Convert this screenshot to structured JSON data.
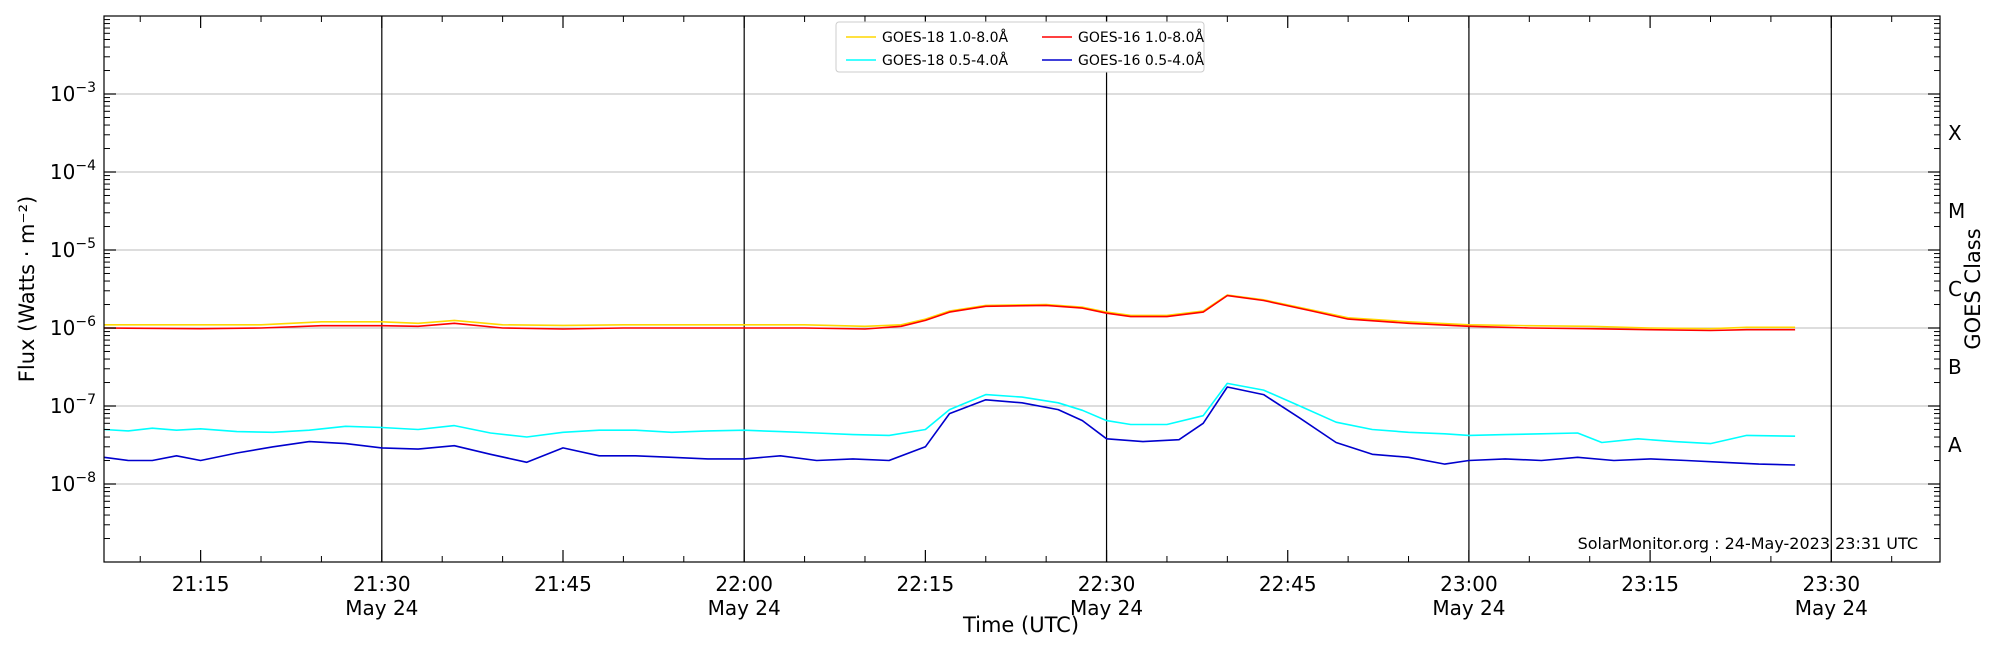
{
  "chart_data": {
    "type": "line",
    "title": "",
    "xlabel": "Time (UTC)",
    "ylabel": "Flux (Watts · m⁻²)",
    "right_ylabel": "GOES Class",
    "yscale": "log",
    "ylim": [
      1e-09,
      0.01
    ],
    "xlim": [
      "21:07",
      "23:39"
    ],
    "date": "May 24",
    "x_ticks": [
      "21:15",
      "21:30",
      "21:45",
      "22:00",
      "22:15",
      "22:30",
      "22:45",
      "23:00",
      "23:15",
      "23:30"
    ],
    "x_tick_dates": [
      "",
      "May 24",
      "",
      "May 24",
      "",
      "May 24",
      "",
      "May 24",
      "",
      "May 24"
    ],
    "y_tick_exponents": [
      -8,
      -7,
      -6,
      -5,
      -4,
      -3
    ],
    "goes_classes": [
      "A",
      "B",
      "C",
      "M",
      "X"
    ],
    "vertical_lines": [
      "21:30",
      "22:00",
      "22:30",
      "23:00",
      "23:30"
    ],
    "grid": "horizontal",
    "legend_position": "top-center",
    "credit": "SolarMonitor.org : 24-May-2023 23:31 UTC",
    "series": [
      {
        "name": "GOES-18 1.0-8.0Å",
        "color": "#FFD700",
        "points": [
          [
            "21:07",
            1.1e-06
          ],
          [
            "21:15",
            1.1e-06
          ],
          [
            "21:20",
            1.1e-06
          ],
          [
            "21:25",
            1.2e-06
          ],
          [
            "21:30",
            1.2e-06
          ],
          [
            "21:33",
            1.15e-06
          ],
          [
            "21:36",
            1.25e-06
          ],
          [
            "21:40",
            1.1e-06
          ],
          [
            "21:45",
            1.08e-06
          ],
          [
            "21:50",
            1.1e-06
          ],
          [
            "22:00",
            1.1e-06
          ],
          [
            "22:05",
            1.1e-06
          ],
          [
            "22:10",
            1.05e-06
          ],
          [
            "22:13",
            1.1e-06
          ],
          [
            "22:15",
            1.3e-06
          ],
          [
            "22:17",
            1.65e-06
          ],
          [
            "22:20",
            1.95e-06
          ],
          [
            "22:25",
            2e-06
          ],
          [
            "22:28",
            1.85e-06
          ],
          [
            "22:30",
            1.6e-06
          ],
          [
            "22:32",
            1.45e-06
          ],
          [
            "22:35",
            1.45e-06
          ],
          [
            "22:38",
            1.65e-06
          ],
          [
            "22:40",
            2.65e-06
          ],
          [
            "22:43",
            2.3e-06
          ],
          [
            "22:47",
            1.7e-06
          ],
          [
            "22:50",
            1.35e-06
          ],
          [
            "22:55",
            1.2e-06
          ],
          [
            "23:00",
            1.1e-06
          ],
          [
            "23:05",
            1.07e-06
          ],
          [
            "23:10",
            1.05e-06
          ],
          [
            "23:15",
            1e-06
          ],
          [
            "23:20",
            9.8e-07
          ],
          [
            "23:23",
            1.02e-06
          ],
          [
            "23:27",
            1.02e-06
          ]
        ]
      },
      {
        "name": "GOES-18 0.5-4.0Å",
        "color": "#00FFFF",
        "points": [
          [
            "21:07",
            5e-08
          ],
          [
            "21:09",
            4.8e-08
          ],
          [
            "21:11",
            5.2e-08
          ],
          [
            "21:13",
            4.9e-08
          ],
          [
            "21:15",
            5.1e-08
          ],
          [
            "21:18",
            4.7e-08
          ],
          [
            "21:21",
            4.6e-08
          ],
          [
            "21:24",
            4.9e-08
          ],
          [
            "21:27",
            5.5e-08
          ],
          [
            "21:30",
            5.3e-08
          ],
          [
            "21:33",
            5e-08
          ],
          [
            "21:36",
            5.6e-08
          ],
          [
            "21:39",
            4.5e-08
          ],
          [
            "21:42",
            4e-08
          ],
          [
            "21:45",
            4.6e-08
          ],
          [
            "21:48",
            4.9e-08
          ],
          [
            "21:51",
            4.9e-08
          ],
          [
            "21:54",
            4.6e-08
          ],
          [
            "21:57",
            4.8e-08
          ],
          [
            "22:00",
            4.9e-08
          ],
          [
            "22:03",
            4.7e-08
          ],
          [
            "22:06",
            4.5e-08
          ],
          [
            "22:09",
            4.3e-08
          ],
          [
            "22:12",
            4.2e-08
          ],
          [
            "22:15",
            5e-08
          ],
          [
            "22:17",
            9e-08
          ],
          [
            "22:20",
            1.4e-07
          ],
          [
            "22:23",
            1.3e-07
          ],
          [
            "22:26",
            1.1e-07
          ],
          [
            "22:28",
            8.8e-08
          ],
          [
            "22:30",
            6.5e-08
          ],
          [
            "22:32",
            5.8e-08
          ],
          [
            "22:35",
            5.8e-08
          ],
          [
            "22:38",
            7.5e-08
          ],
          [
            "22:40",
            1.95e-07
          ],
          [
            "22:43",
            1.6e-07
          ],
          [
            "22:46",
            1e-07
          ],
          [
            "22:49",
            6.2e-08
          ],
          [
            "22:52",
            5e-08
          ],
          [
            "22:55",
            4.6e-08
          ],
          [
            "22:58",
            4.4e-08
          ],
          [
            "23:00",
            4.2e-08
          ],
          [
            "23:03",
            4.3e-08
          ],
          [
            "23:06",
            4.4e-08
          ],
          [
            "23:09",
            4.5e-08
          ],
          [
            "23:11",
            3.4e-08
          ],
          [
            "23:14",
            3.8e-08
          ],
          [
            "23:17",
            3.5e-08
          ],
          [
            "23:20",
            3.3e-08
          ],
          [
            "23:23",
            4.2e-08
          ],
          [
            "23:27",
            4.1e-08
          ]
        ]
      },
      {
        "name": "GOES-16 1.0-8.0Å",
        "color": "#FF0000",
        "points": [
          [
            "21:07",
            1e-06
          ],
          [
            "21:15",
            9.8e-07
          ],
          [
            "21:20",
            1e-06
          ],
          [
            "21:25",
            1.07e-06
          ],
          [
            "21:30",
            1.07e-06
          ],
          [
            "21:33",
            1.05e-06
          ],
          [
            "21:36",
            1.15e-06
          ],
          [
            "21:40",
            1e-06
          ],
          [
            "21:45",
            9.7e-07
          ],
          [
            "21:50",
            1e-06
          ],
          [
            "22:00",
            1e-06
          ],
          [
            "22:05",
            1e-06
          ],
          [
            "22:10",
            9.7e-07
          ],
          [
            "22:13",
            1.05e-06
          ],
          [
            "22:15",
            1.25e-06
          ],
          [
            "22:17",
            1.6e-06
          ],
          [
            "22:20",
            1.9e-06
          ],
          [
            "22:25",
            1.95e-06
          ],
          [
            "22:28",
            1.8e-06
          ],
          [
            "22:30",
            1.55e-06
          ],
          [
            "22:32",
            1.4e-06
          ],
          [
            "22:35",
            1.4e-06
          ],
          [
            "22:38",
            1.6e-06
          ],
          [
            "22:40",
            2.6e-06
          ],
          [
            "22:43",
            2.25e-06
          ],
          [
            "22:47",
            1.65e-06
          ],
          [
            "22:50",
            1.3e-06
          ],
          [
            "22:55",
            1.15e-06
          ],
          [
            "23:00",
            1.05e-06
          ],
          [
            "23:05",
            1e-06
          ],
          [
            "23:10",
            9.8e-07
          ],
          [
            "23:15",
            9.5e-07
          ],
          [
            "23:20",
            9.3e-07
          ],
          [
            "23:23",
            9.5e-07
          ],
          [
            "23:27",
            9.5e-07
          ]
        ]
      },
      {
        "name": "GOES-16 0.5-4.0Å",
        "color": "#0000CD",
        "points": [
          [
            "21:07",
            2.2e-08
          ],
          [
            "21:09",
            2e-08
          ],
          [
            "21:11",
            2e-08
          ],
          [
            "21:13",
            2.3e-08
          ],
          [
            "21:15",
            2e-08
          ],
          [
            "21:18",
            2.5e-08
          ],
          [
            "21:21",
            3e-08
          ],
          [
            "21:24",
            3.5e-08
          ],
          [
            "21:27",
            3.3e-08
          ],
          [
            "21:30",
            2.9e-08
          ],
          [
            "21:33",
            2.8e-08
          ],
          [
            "21:36",
            3.1e-08
          ],
          [
            "21:39",
            2.4e-08
          ],
          [
            "21:42",
            1.9e-08
          ],
          [
            "21:45",
            2.9e-08
          ],
          [
            "21:48",
            2.3e-08
          ],
          [
            "21:51",
            2.3e-08
          ],
          [
            "21:54",
            2.2e-08
          ],
          [
            "21:57",
            2.1e-08
          ],
          [
            "22:00",
            2.1e-08
          ],
          [
            "22:03",
            2.3e-08
          ],
          [
            "22:06",
            2e-08
          ],
          [
            "22:09",
            2.1e-08
          ],
          [
            "22:12",
            2e-08
          ],
          [
            "22:15",
            3e-08
          ],
          [
            "22:17",
            8e-08
          ],
          [
            "22:20",
            1.2e-07
          ],
          [
            "22:23",
            1.1e-07
          ],
          [
            "22:26",
            9e-08
          ],
          [
            "22:28",
            6.5e-08
          ],
          [
            "22:30",
            3.8e-08
          ],
          [
            "22:33",
            3.5e-08
          ],
          [
            "22:36",
            3.7e-08
          ],
          [
            "22:38",
            6e-08
          ],
          [
            "22:40",
            1.75e-07
          ],
          [
            "22:43",
            1.4e-07
          ],
          [
            "22:46",
            7e-08
          ],
          [
            "22:49",
            3.4e-08
          ],
          [
            "22:52",
            2.4e-08
          ],
          [
            "22:55",
            2.2e-08
          ],
          [
            "22:58",
            1.8e-08
          ],
          [
            "23:00",
            2e-08
          ],
          [
            "23:03",
            2.1e-08
          ],
          [
            "23:06",
            2e-08
          ],
          [
            "23:09",
            2.2e-08
          ],
          [
            "23:12",
            2e-08
          ],
          [
            "23:15",
            2.1e-08
          ],
          [
            "23:18",
            2e-08
          ],
          [
            "23:21",
            1.9e-08
          ],
          [
            "23:24",
            1.8e-08
          ],
          [
            "23:27",
            1.75e-08
          ]
        ]
      }
    ]
  }
}
